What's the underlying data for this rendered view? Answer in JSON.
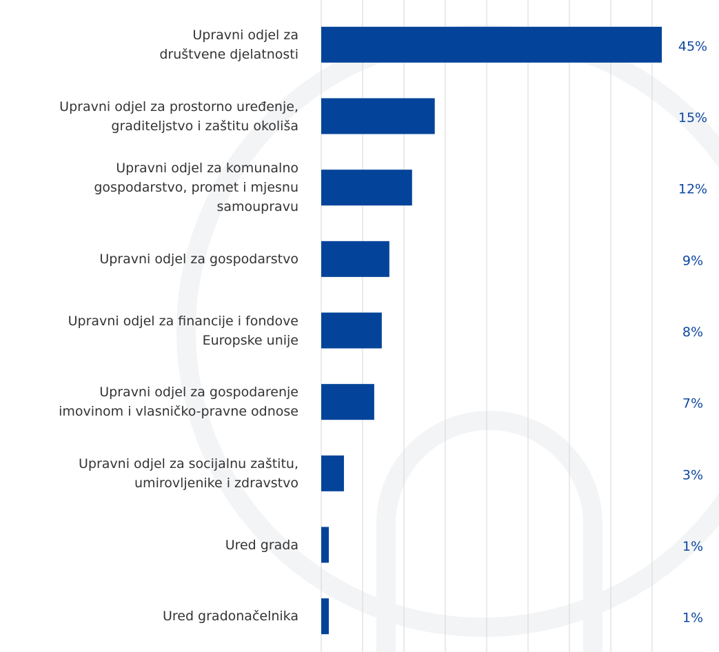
{
  "chart_data": {
    "type": "barh",
    "categories": [
      "Upravni odjel za\ndruštvene djelatnosti",
      "Upravni odjel za prostorno uređenje,\ngraditeljstvo i zaštitu okoliša",
      "Upravni odjel za komunalno\ngospodarstvo, promet i mjesnu\nsamoupravu",
      "Upravni odjel za gospodarstvo",
      "Upravni odjel za financije i fondove\nEuropske unije",
      "Upravni odjel za gospodarenje\nimovinom i vlasničko-pravne odnose",
      "Upravni odjel za socijalnu zaštitu,\numirovljenike i zdravstvo",
      "Ured grada",
      "Ured gradonačelnika"
    ],
    "values": [
      45,
      15,
      12,
      9,
      8,
      7,
      3,
      1,
      1
    ],
    "value_labels": [
      "45%",
      "15%",
      "12%",
      "9%",
      "8%",
      "7%",
      "3%",
      "1%",
      "1%"
    ],
    "color": "#03449a",
    "xlim": [
      0,
      49
    ]
  }
}
